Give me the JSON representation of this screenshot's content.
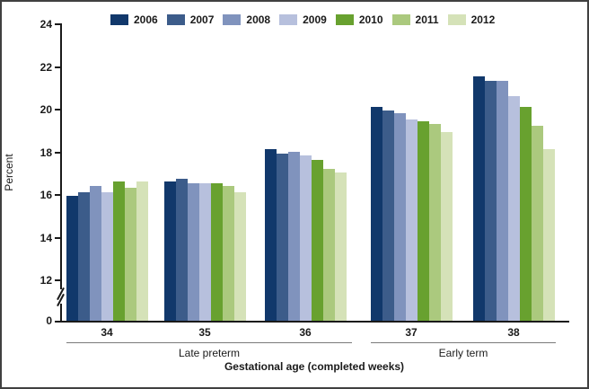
{
  "figure": {
    "y_axis_label": "Percent",
    "x_axis_title": "Gestational age (completed weeks)"
  },
  "chart_data": {
    "type": "bar",
    "title": "",
    "xlabel": "Gestational age (completed weeks)",
    "ylabel": "Percent",
    "categories": [
      "34",
      "35",
      "36",
      "37",
      "38"
    ],
    "series": [
      {
        "name": "2006",
        "color": "#11386b",
        "values": [
          15.9,
          16.6,
          18.1,
          20.1,
          21.5
        ]
      },
      {
        "name": "2007",
        "color": "#3c5c8a",
        "values": [
          16.1,
          16.7,
          17.9,
          19.9,
          21.3
        ]
      },
      {
        "name": "2008",
        "color": "#8093bd",
        "values": [
          16.4,
          16.5,
          18.0,
          19.8,
          21.3
        ]
      },
      {
        "name": "2009",
        "color": "#b7c0dd",
        "values": [
          16.1,
          16.5,
          17.8,
          19.5,
          20.6
        ]
      },
      {
        "name": "2010",
        "color": "#68a12f",
        "values": [
          16.6,
          16.5,
          17.6,
          19.4,
          20.1
        ]
      },
      {
        "name": "2011",
        "color": "#abc97e",
        "values": [
          16.3,
          16.4,
          17.2,
          19.3,
          19.2
        ]
      },
      {
        "name": "2012",
        "color": "#d5e2b8",
        "values": [
          16.6,
          16.1,
          17.0,
          18.9,
          18.1
        ]
      }
    ],
    "ylim": [
      0,
      24
    ],
    "y_ticks_upper": [
      24,
      22,
      20,
      18,
      16,
      14,
      12
    ],
    "y_tick_zero": 0,
    "axis_break": true,
    "grid": false,
    "legend_position": "top",
    "category_groups": [
      {
        "label": "Late preterm",
        "categories": [
          "34",
          "35",
          "36"
        ]
      },
      {
        "label": "Early term",
        "categories": [
          "37",
          "38"
        ]
      }
    ]
  }
}
